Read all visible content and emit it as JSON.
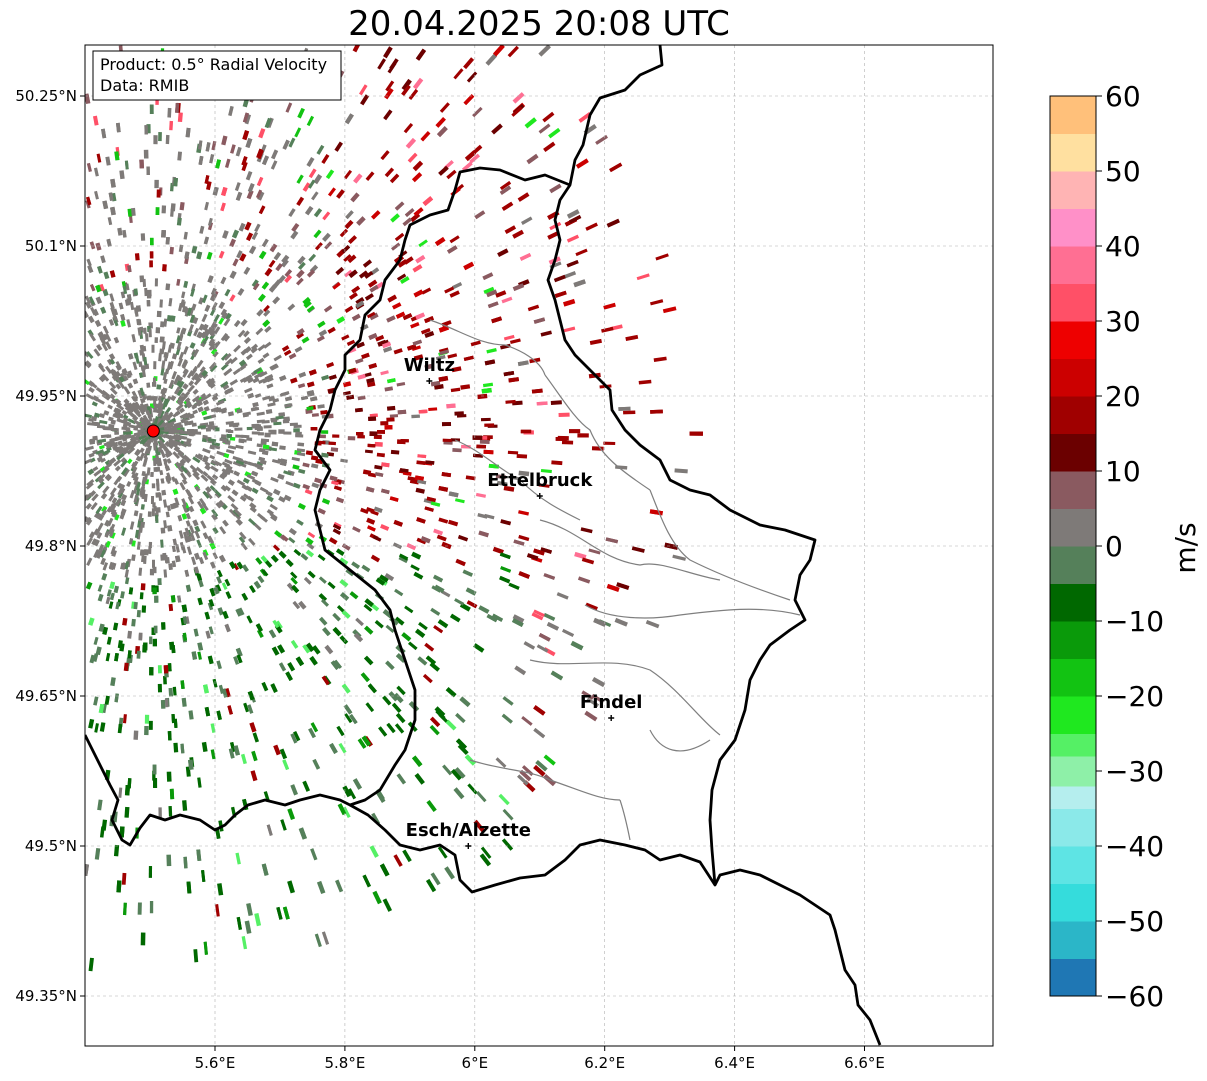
{
  "title": "20.04.2025 20:08 UTC",
  "info": {
    "product": "Product: 0.5° Radial Velocity",
    "data": "Data: RMIB"
  },
  "axes": {
    "x_ticks": [
      {
        "lon": 5.6,
        "label": "5.6°E"
      },
      {
        "lon": 5.8,
        "label": "5.8°E"
      },
      {
        "lon": 6.0,
        "label": "6°E"
      },
      {
        "lon": 6.2,
        "label": "6.2°E"
      },
      {
        "lon": 6.4,
        "label": "6.4°E"
      },
      {
        "lon": 6.6,
        "label": "6.6°E"
      }
    ],
    "y_ticks": [
      {
        "lat": 50.25,
        "label": "50.25°N"
      },
      {
        "lat": 50.1,
        "label": "50.1°N"
      },
      {
        "lat": 49.95,
        "label": "49.95°N"
      },
      {
        "lat": 49.8,
        "label": "49.8°N"
      },
      {
        "lat": 49.65,
        "label": "49.65°N"
      },
      {
        "lat": 49.5,
        "label": "49.5°N"
      },
      {
        "lat": 49.35,
        "label": "49.35°N"
      }
    ],
    "lon_range": [
      5.4,
      6.8
    ],
    "lat_range": [
      49.3,
      50.3
    ],
    "grid": true
  },
  "colorbar": {
    "unit": "m/s",
    "range": [
      -60,
      60
    ],
    "ticks": [
      {
        "value": 60,
        "label": "60"
      },
      {
        "value": 50,
        "label": "50"
      },
      {
        "value": 40,
        "label": "40"
      },
      {
        "value": 30,
        "label": "30"
      },
      {
        "value": 20,
        "label": "20"
      },
      {
        "value": 10,
        "label": "10"
      },
      {
        "value": 0,
        "label": "0"
      },
      {
        "value": -10,
        "label": "−10"
      },
      {
        "value": -20,
        "label": "−20"
      },
      {
        "value": -30,
        "label": "−30"
      },
      {
        "value": -40,
        "label": "−40"
      },
      {
        "value": -50,
        "label": "−50"
      },
      {
        "value": -60,
        "label": "−60"
      }
    ],
    "colors": {
      "c-60": "#1f77b4",
      "c-55": "#2bb6c8",
      "c-50": "#35dcdc",
      "c-45": "#5ee4e4",
      "c-40": "#8be9e9",
      "c-35": "#b5eeee",
      "c-30": "#8ef0a8",
      "c-28": "#55f065",
      "c-25": "#1fe81f",
      "c-20": "#12c312",
      "c-15": "#0a9a0a",
      "c-10": "#006800",
      "c-05": "#55805a",
      "c0": "#7e7a78",
      "c05": "#8a5a60",
      "c10": "#6b0000",
      "c15": "#a00000",
      "c20": "#cc0000",
      "c25": "#ee0000",
      "c30": "#ff5067",
      "c35": "#ff6f93",
      "c40": "#ff90c8",
      "c45": "#ffb4b4",
      "c50": "#ffe0a0",
      "c55": "#ffc07a",
      "c60": "#ff9a55"
    }
  },
  "places": [
    {
      "name": "Wiltz",
      "lon": 5.93,
      "lat": 49.965
    },
    {
      "name": "Ettelbruck",
      "lon": 6.1,
      "lat": 49.85
    },
    {
      "name": "Findel",
      "lon": 6.21,
      "lat": 49.628
    },
    {
      "name": "Esch/Alzette",
      "lon": 5.99,
      "lat": 49.5
    }
  ],
  "radar_site": {
    "lon": 5.505,
    "lat": 49.915
  }
}
